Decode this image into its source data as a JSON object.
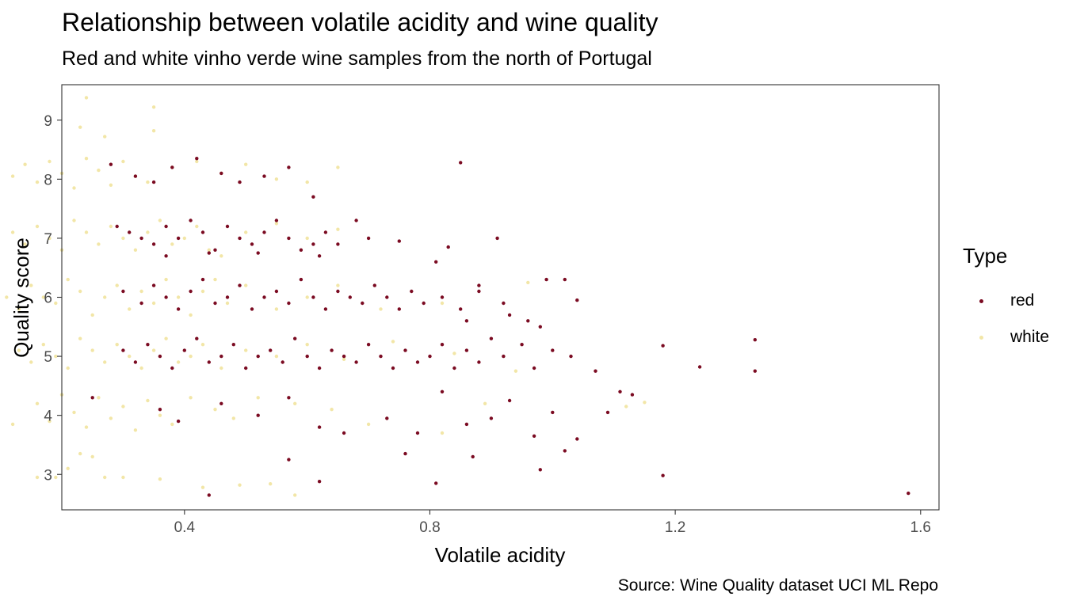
{
  "chart_data": {
    "type": "scatter",
    "title": "Relationship between volatile acidity and wine quality",
    "subtitle": "Red and white vinho verde wine samples from the north of Portugal",
    "caption": "Source: Wine Quality dataset UCI ML Repo",
    "xlabel": "Volatile acidity",
    "ylabel": "Quality score",
    "xlim": [
      0.2,
      1.63
    ],
    "ylim": [
      2.4,
      9.6
    ],
    "x_ticks": [
      0.4,
      0.8,
      1.2,
      1.6
    ],
    "x_tick_labels": [
      "0.4",
      "0.8",
      "1.2",
      "1.6"
    ],
    "y_ticks": [
      3,
      4,
      5,
      6,
      7,
      8,
      9
    ],
    "y_tick_labels": [
      "3",
      "4",
      "5",
      "6",
      "7",
      "8",
      "9"
    ],
    "grid": false,
    "jitter": true,
    "legend": {
      "title": "Type",
      "position": "right"
    },
    "series": [
      {
        "name": "red",
        "color": "#7b0b22",
        "points": [
          [
            0.29,
            7.2
          ],
          [
            0.31,
            7.1
          ],
          [
            0.33,
            7.0
          ],
          [
            0.35,
            6.9
          ],
          [
            0.37,
            7.2
          ],
          [
            0.39,
            7.0
          ],
          [
            0.41,
            7.3
          ],
          [
            0.43,
            7.1
          ],
          [
            0.45,
            6.8
          ],
          [
            0.47,
            7.2
          ],
          [
            0.49,
            7.0
          ],
          [
            0.51,
            6.9
          ],
          [
            0.53,
            7.1
          ],
          [
            0.55,
            7.3
          ],
          [
            0.57,
            7.0
          ],
          [
            0.59,
            6.8
          ],
          [
            0.61,
            6.9
          ],
          [
            0.63,
            7.1
          ],
          [
            0.65,
            6.9
          ],
          [
            0.68,
            7.3
          ],
          [
            0.7,
            7.0
          ],
          [
            0.75,
            6.95
          ],
          [
            0.81,
            6.6
          ],
          [
            0.83,
            6.85
          ],
          [
            0.88,
            6.2
          ],
          [
            0.91,
            7.0
          ],
          [
            0.37,
            6.7
          ],
          [
            0.44,
            6.75
          ],
          [
            0.52,
            6.75
          ],
          [
            0.62,
            6.7
          ],
          [
            0.3,
            6.1
          ],
          [
            0.33,
            5.9
          ],
          [
            0.35,
            6.2
          ],
          [
            0.37,
            6.0
          ],
          [
            0.39,
            5.8
          ],
          [
            0.41,
            6.1
          ],
          [
            0.43,
            6.3
          ],
          [
            0.45,
            5.9
          ],
          [
            0.47,
            6.0
          ],
          [
            0.49,
            6.2
          ],
          [
            0.51,
            5.8
          ],
          [
            0.53,
            6.0
          ],
          [
            0.55,
            6.1
          ],
          [
            0.57,
            5.9
          ],
          [
            0.59,
            6.3
          ],
          [
            0.61,
            6.0
          ],
          [
            0.63,
            5.8
          ],
          [
            0.65,
            6.1
          ],
          [
            0.67,
            6.0
          ],
          [
            0.69,
            5.9
          ],
          [
            0.71,
            6.2
          ],
          [
            0.73,
            6.0
          ],
          [
            0.75,
            5.8
          ],
          [
            0.77,
            6.1
          ],
          [
            0.79,
            5.9
          ],
          [
            0.82,
            6.0
          ],
          [
            0.85,
            5.8
          ],
          [
            0.88,
            6.1
          ],
          [
            0.92,
            5.9
          ],
          [
            0.96,
            5.6
          ],
          [
            0.99,
            6.3
          ],
          [
            1.02,
            6.3
          ],
          [
            1.04,
            5.95
          ],
          [
            0.98,
            5.5
          ],
          [
            0.93,
            5.7
          ],
          [
            0.86,
            5.6
          ],
          [
            0.3,
            5.1
          ],
          [
            0.32,
            4.9
          ],
          [
            0.34,
            5.2
          ],
          [
            0.36,
            5.0
          ],
          [
            0.38,
            4.8
          ],
          [
            0.4,
            5.1
          ],
          [
            0.42,
            5.3
          ],
          [
            0.44,
            4.9
          ],
          [
            0.46,
            5.0
          ],
          [
            0.48,
            5.2
          ],
          [
            0.5,
            4.8
          ],
          [
            0.52,
            5.0
          ],
          [
            0.54,
            5.1
          ],
          [
            0.56,
            4.9
          ],
          [
            0.58,
            5.3
          ],
          [
            0.6,
            5.0
          ],
          [
            0.62,
            4.8
          ],
          [
            0.64,
            5.1
          ],
          [
            0.66,
            5.0
          ],
          [
            0.68,
            4.9
          ],
          [
            0.7,
            5.2
          ],
          [
            0.72,
            5.0
          ],
          [
            0.74,
            4.8
          ],
          [
            0.76,
            5.1
          ],
          [
            0.78,
            4.9
          ],
          [
            0.8,
            5.0
          ],
          [
            0.82,
            5.2
          ],
          [
            0.84,
            4.8
          ],
          [
            0.86,
            5.1
          ],
          [
            0.88,
            4.9
          ],
          [
            0.9,
            5.3
          ],
          [
            0.92,
            5.0
          ],
          [
            0.95,
            5.2
          ],
          [
            0.97,
            4.8
          ],
          [
            1.0,
            5.1
          ],
          [
            1.03,
            5.0
          ],
          [
            1.07,
            4.75
          ],
          [
            1.18,
            5.18
          ],
          [
            1.24,
            4.82
          ],
          [
            1.33,
            5.28
          ],
          [
            1.33,
            4.75
          ],
          [
            0.25,
            4.3
          ],
          [
            0.36,
            4.1
          ],
          [
            0.39,
            3.9
          ],
          [
            0.46,
            4.2
          ],
          [
            0.52,
            4.0
          ],
          [
            0.57,
            4.3
          ],
          [
            0.62,
            3.8
          ],
          [
            0.66,
            3.7
          ],
          [
            0.73,
            3.95
          ],
          [
            0.78,
            3.7
          ],
          [
            0.82,
            4.4
          ],
          [
            0.86,
            3.85
          ],
          [
            0.9,
            3.95
          ],
          [
            0.93,
            4.25
          ],
          [
            0.97,
            3.65
          ],
          [
            1.0,
            4.05
          ],
          [
            1.04,
            3.6
          ],
          [
            1.09,
            4.05
          ],
          [
            1.11,
            4.4
          ],
          [
            1.13,
            4.35
          ],
          [
            0.76,
            3.35
          ],
          [
            0.87,
            3.3
          ],
          [
            0.98,
            3.08
          ],
          [
            1.02,
            3.4
          ],
          [
            0.57,
            3.25
          ],
          [
            0.81,
            2.85
          ],
          [
            0.62,
            2.88
          ],
          [
            1.18,
            2.98
          ],
          [
            1.58,
            2.68
          ],
          [
            0.44,
            2.65
          ],
          [
            0.28,
            8.25
          ],
          [
            0.32,
            8.05
          ],
          [
            0.35,
            7.95
          ],
          [
            0.38,
            8.2
          ],
          [
            0.42,
            8.35
          ],
          [
            0.46,
            8.1
          ],
          [
            0.49,
            7.95
          ],
          [
            0.53,
            8.05
          ],
          [
            0.57,
            8.2
          ],
          [
            0.61,
            7.7
          ],
          [
            0.85,
            8.28
          ]
        ]
      },
      {
        "name": "white",
        "color": "#f2e6a7",
        "points": [
          [
            0.12,
            7.1
          ],
          [
            0.14,
            6.9
          ],
          [
            0.16,
            7.2
          ],
          [
            0.18,
            7.0
          ],
          [
            0.2,
            6.8
          ],
          [
            0.22,
            7.3
          ],
          [
            0.24,
            7.1
          ],
          [
            0.26,
            6.9
          ],
          [
            0.28,
            7.2
          ],
          [
            0.3,
            7.0
          ],
          [
            0.32,
            6.8
          ],
          [
            0.34,
            7.1
          ],
          [
            0.36,
            7.3
          ],
          [
            0.38,
            6.9
          ],
          [
            0.4,
            7.0
          ],
          [
            0.42,
            7.2
          ],
          [
            0.44,
            6.8
          ],
          [
            0.46,
            6.7
          ],
          [
            0.5,
            7.1
          ],
          [
            0.55,
            7.25
          ],
          [
            0.6,
            7.0
          ],
          [
            0.65,
            7.15
          ],
          [
            0.11,
            6.0
          ],
          [
            0.13,
            5.8
          ],
          [
            0.15,
            6.2
          ],
          [
            0.17,
            6.0
          ],
          [
            0.19,
            5.9
          ],
          [
            0.21,
            6.3
          ],
          [
            0.23,
            6.1
          ],
          [
            0.25,
            5.7
          ],
          [
            0.27,
            6.0
          ],
          [
            0.29,
            6.2
          ],
          [
            0.31,
            5.8
          ],
          [
            0.33,
            6.1
          ],
          [
            0.35,
            5.9
          ],
          [
            0.37,
            6.3
          ],
          [
            0.39,
            6.0
          ],
          [
            0.41,
            5.7
          ],
          [
            0.43,
            6.1
          ],
          [
            0.45,
            6.3
          ],
          [
            0.47,
            5.9
          ],
          [
            0.5,
            6.2
          ],
          [
            0.55,
            5.8
          ],
          [
            0.6,
            6.0
          ],
          [
            0.65,
            6.2
          ],
          [
            0.72,
            5.8
          ],
          [
            0.82,
            5.9
          ],
          [
            0.96,
            6.25
          ],
          [
            0.13,
            5.1
          ],
          [
            0.15,
            4.9
          ],
          [
            0.17,
            5.2
          ],
          [
            0.19,
            5.0
          ],
          [
            0.21,
            4.8
          ],
          [
            0.23,
            5.3
          ],
          [
            0.25,
            5.1
          ],
          [
            0.27,
            4.9
          ],
          [
            0.29,
            5.2
          ],
          [
            0.31,
            5.0
          ],
          [
            0.33,
            4.8
          ],
          [
            0.35,
            5.1
          ],
          [
            0.37,
            5.3
          ],
          [
            0.39,
            4.9
          ],
          [
            0.41,
            5.0
          ],
          [
            0.43,
            5.2
          ],
          [
            0.46,
            4.8
          ],
          [
            0.5,
            5.1
          ],
          [
            0.55,
            5.0
          ],
          [
            0.6,
            5.2
          ],
          [
            0.66,
            4.95
          ],
          [
            0.74,
            5.25
          ],
          [
            0.84,
            5.05
          ],
          [
            0.94,
            4.75
          ],
          [
            1.12,
            4.15
          ],
          [
            1.15,
            4.22
          ],
          [
            0.12,
            3.85
          ],
          [
            0.16,
            4.2
          ],
          [
            0.18,
            3.9
          ],
          [
            0.2,
            4.35
          ],
          [
            0.22,
            4.05
          ],
          [
            0.24,
            3.8
          ],
          [
            0.26,
            4.3
          ],
          [
            0.28,
            3.95
          ],
          [
            0.3,
            4.15
          ],
          [
            0.32,
            3.75
          ],
          [
            0.34,
            4.25
          ],
          [
            0.36,
            4.0
          ],
          [
            0.38,
            3.85
          ],
          [
            0.41,
            4.3
          ],
          [
            0.45,
            4.1
          ],
          [
            0.48,
            3.95
          ],
          [
            0.52,
            4.3
          ],
          [
            0.58,
            4.2
          ],
          [
            0.64,
            4.1
          ],
          [
            0.7,
            3.85
          ],
          [
            0.82,
            3.7
          ],
          [
            0.89,
            4.2
          ],
          [
            0.16,
            2.95
          ],
          [
            0.19,
            2.95
          ],
          [
            0.21,
            3.1
          ],
          [
            0.23,
            3.35
          ],
          [
            0.25,
            3.3
          ],
          [
            0.27,
            2.95
          ],
          [
            0.3,
            2.95
          ],
          [
            0.36,
            2.92
          ],
          [
            0.43,
            2.78
          ],
          [
            0.49,
            2.82
          ],
          [
            0.54,
            2.84
          ],
          [
            0.58,
            2.65
          ],
          [
            0.12,
            8.05
          ],
          [
            0.14,
            8.25
          ],
          [
            0.16,
            7.95
          ],
          [
            0.18,
            8.3
          ],
          [
            0.2,
            8.1
          ],
          [
            0.22,
            7.85
          ],
          [
            0.24,
            8.35
          ],
          [
            0.26,
            8.15
          ],
          [
            0.28,
            7.9
          ],
          [
            0.3,
            8.3
          ],
          [
            0.32,
            8.05
          ],
          [
            0.34,
            7.95
          ],
          [
            0.38,
            8.2
          ],
          [
            0.42,
            8.3
          ],
          [
            0.46,
            8.1
          ],
          [
            0.5,
            8.25
          ],
          [
            0.55,
            8.0
          ],
          [
            0.6,
            7.95
          ],
          [
            0.65,
            8.2
          ],
          [
            0.24,
            9.38
          ],
          [
            0.35,
            9.22
          ],
          [
            0.23,
            8.88
          ],
          [
            0.35,
            8.82
          ],
          [
            0.27,
            8.72
          ]
        ]
      }
    ]
  }
}
